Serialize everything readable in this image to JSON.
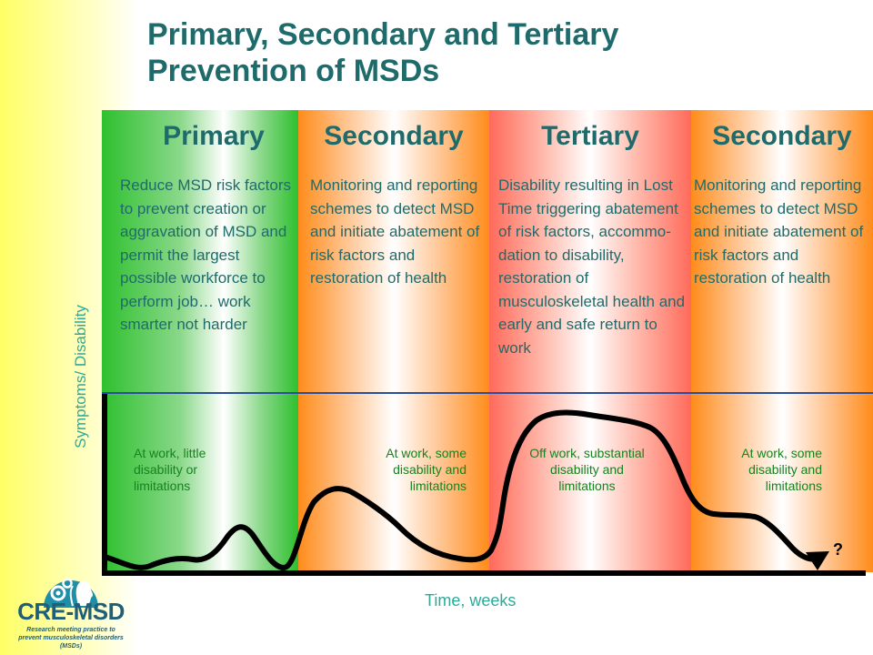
{
  "title": {
    "line1": "Primary, Secondary and Tertiary",
    "line2": "Prevention of MSDs"
  },
  "columns": [
    {
      "heading": "Primary",
      "description": "Reduce MSD risk factors to prevent creation or aggravation of MSD and permit the largest possible workforce to perform job… work smarter not harder",
      "status": "At work, little disability or limitations"
    },
    {
      "heading": "Secondary",
      "description": "Monitoring and reporting schemes to detect MSD and initiate abatement of risk factors and restoration of health",
      "status": "At work, some disability and limitations"
    },
    {
      "heading": "Tertiary",
      "description": "Disability resulting in Lost Time triggering abatement of risk factors, accommo-dation to disability, restoration of musculoskeletal health and early and safe return to work",
      "status": "Off work, substantial disability and limitations"
    },
    {
      "heading": "Secondary",
      "description": "Monitoring and reporting schemes to detect MSD and initiate abatement of risk factors and restoration of health",
      "status": "At work, some disability and limitations"
    }
  ],
  "axes": {
    "y_label": "Symptoms/ Disability",
    "x_label": "Time, weeks"
  },
  "end_marker": "?",
  "logo": {
    "name": "CRE-MSD",
    "tagline": "Research meeting practice to prevent musculoskeletal disorders (MSDs)"
  },
  "colors": {
    "primary": "#2ec02e",
    "secondary": "#ff8c1a",
    "tertiary": "#ff6a5a",
    "heading_text": "#1f6b6b",
    "status_text": "#17821f",
    "axis_label": "#2eaa9a"
  }
}
